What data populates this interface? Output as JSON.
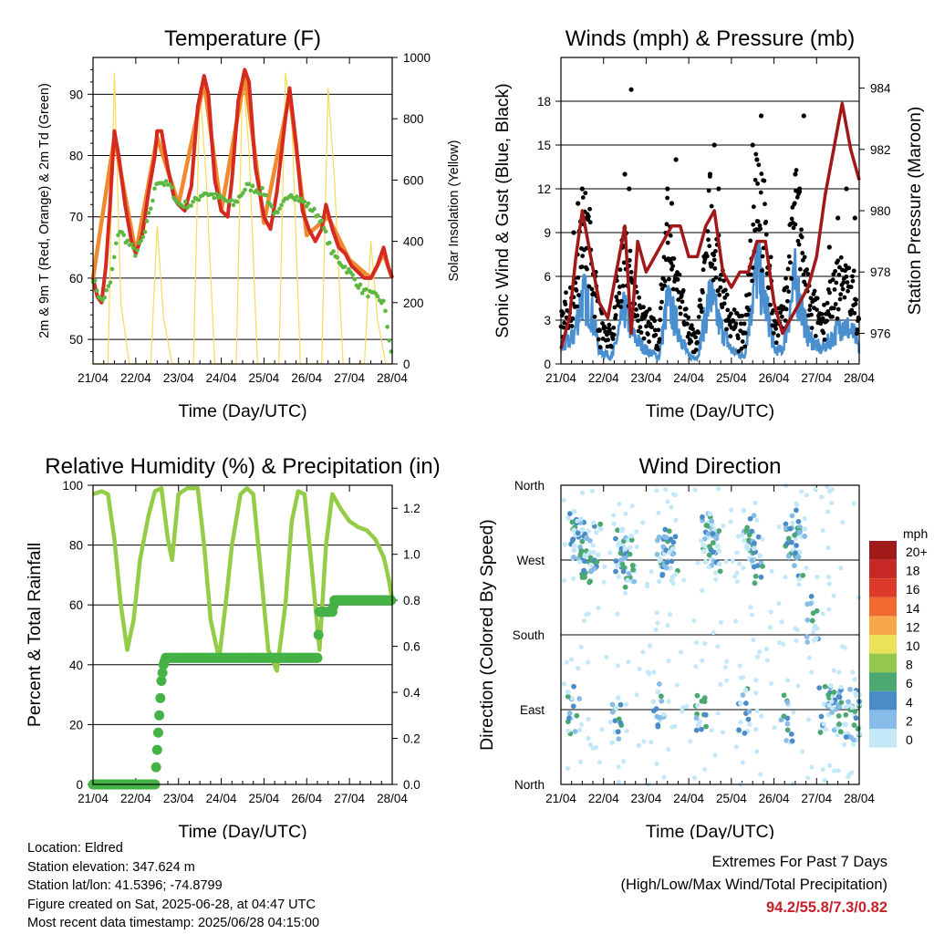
{
  "chart_data": [
    {
      "type": "line",
      "title": "Temperature (F)",
      "xlabel": "Time (Day/UTC)",
      "ylabel": "2m & 9m T (Red, Orange) & 2m Td (Green)",
      "ylabel_right": "Solar Insolation (Yellow)",
      "x_ticks": [
        "21/04",
        "22/04",
        "23/04",
        "24/04",
        "25/04",
        "26/04",
        "27/04",
        "28/04"
      ],
      "y_ticks": [
        50,
        60,
        70,
        80,
        90
      ],
      "y_right_ticks": [
        0,
        200,
        400,
        600,
        800,
        1000
      ],
      "ylim": [
        46,
        96
      ],
      "ylim_right": [
        0,
        1000
      ],
      "grid": true,
      "colors": {
        "temp_2m": "#d42a20",
        "temp_9m": "#f08a30",
        "dewpoint": "#5cb840",
        "solar": "#f5dc5a"
      },
      "series": [
        {
          "name": "2m T",
          "x": [
            0,
            0.1,
            0.2,
            0.3,
            0.4,
            0.5,
            0.6,
            0.75,
            0.9,
            1.0,
            1.15,
            1.3,
            1.45,
            1.5,
            1.6,
            1.75,
            1.9,
            2.0,
            2.15,
            2.3,
            2.45,
            2.6,
            2.7,
            2.85,
            3.0,
            3.15,
            3.25,
            3.4,
            3.55,
            3.65,
            3.8,
            4.0,
            4.15,
            4.3,
            4.5,
            4.6,
            4.75,
            4.9,
            5.05,
            5.2,
            5.35,
            5.45,
            5.6,
            5.75,
            5.9,
            6.05,
            6.2,
            6.35,
            6.5,
            6.65,
            6.8,
            6.9,
            7.0
          ],
          "y": [
            60,
            57,
            56,
            62,
            72,
            84,
            80,
            72,
            66,
            64,
            67,
            74,
            80,
            84,
            84,
            78,
            73,
            72,
            71,
            75,
            88,
            93,
            90,
            76,
            71,
            70,
            76,
            89,
            94,
            92,
            78,
            70,
            68,
            74,
            86,
            91,
            82,
            71,
            68,
            66,
            68,
            72,
            68,
            65,
            64,
            62,
            61,
            60,
            60,
            62,
            65,
            62,
            60
          ]
        },
        {
          "name": "9m T",
          "x": [
            0,
            0.5,
            1.0,
            1.5,
            2.0,
            2.6,
            3.0,
            3.55,
            4.0,
            4.6,
            5.0,
            5.5,
            6.0,
            6.5,
            6.8,
            7.0
          ],
          "y": [
            60,
            83,
            64,
            83,
            72,
            92,
            71,
            93,
            69,
            90,
            67,
            70,
            63,
            60,
            64,
            60
          ]
        },
        {
          "name": "2m Td",
          "x": [
            0,
            0.2,
            0.4,
            0.6,
            0.8,
            1.0,
            1.2,
            1.5,
            1.8,
            2.0,
            2.3,
            2.6,
            3.0,
            3.3,
            3.6,
            4.0,
            4.3,
            4.6,
            5.0,
            5.3,
            5.6,
            6.0,
            6.3,
            6.6,
            6.8,
            7.0
          ],
          "y": [
            60,
            56,
            59,
            68,
            66,
            64,
            67,
            76,
            75,
            72,
            72,
            74,
            73,
            72,
            75,
            74,
            70,
            74,
            72,
            70,
            64,
            61,
            58,
            57,
            56,
            47
          ]
        },
        {
          "name": "Solar",
          "x": [
            0,
            0.35,
            0.5,
            0.65,
            0.85,
            1.35,
            1.5,
            1.65,
            1.85,
            2.35,
            2.5,
            2.65,
            2.85,
            3.35,
            3.5,
            3.65,
            3.85,
            4.35,
            4.5,
            4.65,
            4.85,
            5.35,
            5.5,
            5.65,
            5.85,
            6.35,
            6.5,
            6.65,
            6.85,
            7.0
          ],
          "y": [
            0,
            0,
            950,
            200,
            0,
            0,
            450,
            150,
            0,
            0,
            900,
            600,
            0,
            0,
            950,
            700,
            0,
            0,
            950,
            800,
            0,
            0,
            900,
            600,
            0,
            0,
            400,
            150,
            0,
            0
          ]
        }
      ]
    },
    {
      "type": "scatter",
      "title": "Winds (mph) & Pressure (mb)",
      "xlabel": "Time (Day/UTC)",
      "ylabel": "Sonic Wind & Gust (Blue, Black)",
      "ylabel_right": "Station Pressure (Maroon)",
      "x_ticks": [
        "21/04",
        "22/04",
        "23/04",
        "24/04",
        "25/04",
        "26/04",
        "27/04",
        "28/04"
      ],
      "y_ticks": [
        0,
        3,
        6,
        9,
        12,
        15,
        18
      ],
      "y_right_ticks": [
        976,
        978,
        980,
        982,
        984
      ],
      "ylim": [
        0,
        21
      ],
      "ylim_right": [
        975,
        985
      ],
      "grid": true,
      "colors": {
        "wind": "#4a90d0",
        "gust": "#000000",
        "pressure": "#a01818"
      },
      "series": [
        {
          "name": "Wind",
          "x": [
            0,
            0.3,
            0.5,
            0.7,
            0.9,
            1.2,
            1.5,
            1.7,
            2.0,
            2.3,
            2.5,
            2.7,
            3.0,
            3.2,
            3.5,
            3.7,
            4.0,
            4.3,
            4.6,
            4.9,
            5.0,
            5.2,
            5.5,
            5.8,
            6.1,
            6.4,
            6.6,
            6.9,
            7.0
          ],
          "y": [
            1,
            2,
            5,
            4,
            1,
            0.5,
            4,
            2,
            1,
            0.5,
            4.5,
            3,
            0.5,
            0.5,
            5,
            3,
            1,
            0.5,
            7,
            3,
            1,
            1,
            6,
            2,
            1,
            2,
            3,
            2,
            1
          ]
        },
        {
          "name": "Gust",
          "x": [
            0.3,
            0.4,
            0.5,
            0.6,
            1.3,
            1.5,
            1.6,
            1.65,
            2.5,
            2.6,
            2.7,
            3.5,
            3.6,
            3.7,
            4.5,
            4.6,
            4.7,
            5.5,
            5.6,
            5.7,
            6.3,
            6.5,
            6.7,
            6.9
          ],
          "y": [
            9,
            11,
            12,
            10,
            6,
            13,
            12,
            18.8,
            12,
            11,
            14,
            13,
            15,
            12,
            15,
            14,
            17,
            13,
            12,
            17,
            8,
            10,
            12,
            10
          ]
        },
        {
          "name": "Pressure",
          "x": [
            0,
            0.2,
            0.35,
            0.5,
            0.7,
            0.9,
            1.1,
            1.3,
            1.5,
            1.65,
            1.8,
            2.0,
            2.2,
            2.4,
            2.6,
            2.8,
            3.0,
            3.2,
            3.4,
            3.6,
            3.8,
            4.0,
            4.2,
            4.4,
            4.6,
            4.8,
            5.0,
            5.2,
            5.4,
            5.6,
            5.8,
            6.0,
            6.2,
            6.4,
            6.6,
            6.8,
            7.0
          ],
          "y": [
            975.5,
            976.5,
            978.5,
            980,
            978.5,
            977,
            976.5,
            978,
            979.5,
            976,
            979,
            978,
            978.5,
            979,
            979.5,
            979.5,
            978.5,
            978.5,
            979.5,
            980,
            978,
            977.5,
            978,
            978,
            979,
            979,
            977,
            976,
            976.5,
            977,
            977.5,
            978.5,
            980.5,
            982,
            983.5,
            982,
            981
          ]
        }
      ]
    },
    {
      "type": "line",
      "title": "Relative Humidity (%) & Precipitation (in)",
      "xlabel": "Time (Day/UTC)",
      "ylabel": "Percent & Total Rainfall",
      "x_ticks": [
        "21/04",
        "22/04",
        "23/04",
        "24/04",
        "25/04",
        "26/04",
        "27/04",
        "28/04"
      ],
      "y_ticks": [
        0,
        20,
        40,
        60,
        80,
        100
      ],
      "y_right_ticks": [
        0.0,
        0.2,
        0.4,
        0.6,
        0.8,
        1.0,
        1.2
      ],
      "ylim": [
        0,
        100
      ],
      "ylim_right": [
        0,
        1.3
      ],
      "grid": true,
      "colors": {
        "humidity": "#94cc48",
        "precip": "#44b244"
      },
      "series": [
        {
          "name": "Relative Humidity",
          "x": [
            0,
            0.2,
            0.35,
            0.5,
            0.65,
            0.8,
            0.95,
            1.1,
            1.3,
            1.45,
            1.6,
            1.75,
            1.85,
            2.0,
            2.2,
            2.45,
            2.6,
            2.75,
            2.95,
            3.1,
            3.25,
            3.45,
            3.6,
            3.75,
            3.9,
            4.1,
            4.3,
            4.5,
            4.65,
            4.8,
            4.95,
            5.1,
            5.3,
            5.45,
            5.6,
            5.8,
            6.0,
            6.2,
            6.4,
            6.6,
            6.8,
            6.9,
            7.0
          ],
          "y": [
            97,
            98,
            97,
            82,
            60,
            45,
            55,
            75,
            90,
            98,
            99,
            82,
            75,
            97,
            99,
            99,
            80,
            55,
            42,
            60,
            80,
            97,
            99,
            97,
            75,
            45,
            38,
            60,
            88,
            98,
            97,
            75,
            45,
            80,
            97,
            92,
            88,
            86,
            85,
            82,
            76,
            70,
            62
          ]
        },
        {
          "name": "Total Precipitation",
          "x": [
            0,
            1.45,
            1.5,
            1.55,
            1.6,
            1.65,
            1.7,
            1.75,
            5.25,
            5.3,
            5.6,
            5.65,
            7.0
          ],
          "y": [
            0,
            0,
            0.15,
            0.3,
            0.45,
            0.52,
            0.55,
            0.55,
            0.55,
            0.75,
            0.75,
            0.8,
            0.8
          ]
        }
      ]
    },
    {
      "type": "scatter",
      "title": "Wind Direction",
      "xlabel": "Time (Day/UTC)",
      "ylabel": "Direction (Colored By Speed)",
      "x_ticks": [
        "21/04",
        "22/04",
        "23/04",
        "24/04",
        "25/04",
        "26/04",
        "27/04",
        "28/04"
      ],
      "y_ticks": [
        "North",
        "West",
        "South",
        "East",
        "North"
      ],
      "grid": true,
      "legend": {
        "title": "mph",
        "labels": [
          "20+",
          "18",
          "16",
          "14",
          "12",
          "10",
          "8",
          "6",
          "4",
          "2",
          "0"
        ],
        "colors": [
          "#a01a1a",
          "#c62828",
          "#dd3a2a",
          "#f0692e",
          "#f7a64a",
          "#ece25a",
          "#96c850",
          "#4aa870",
          "#4a8cc8",
          "#88bce8",
          "#c4e8f8"
        ]
      },
      "series": [
        {
          "name": "Direction",
          "x": [
            0.3,
            0.4,
            0.5,
            0.6,
            0.8,
            1.4,
            1.5,
            1.6,
            2.4,
            2.5,
            2.6,
            3.4,
            3.5,
            3.6,
            4.4,
            4.5,
            4.6,
            5.4,
            5.5,
            5.6,
            5.9,
            6.2,
            6.4,
            6.6,
            6.8,
            7.0,
            0.3,
            1.3,
            2.3,
            3.3,
            4.3,
            5.3
          ],
          "y": [
            300,
            290,
            280,
            270,
            285,
            285,
            270,
            265,
            290,
            280,
            275,
            300,
            290,
            280,
            300,
            285,
            270,
            300,
            290,
            280,
            200,
            90,
            95,
            90,
            85,
            80,
            90,
            80,
            95,
            85,
            90,
            80
          ]
        }
      ]
    }
  ],
  "info": {
    "location": "Location: Eldred",
    "elevation": "Station elevation: 347.624 m",
    "latlon": "Station lat/lon: 41.5396; -74.8799",
    "created": "Figure created on Sat, 2025-06-28, at 04:47 UTC",
    "recent": "Most recent data timestamp: 2025/06/28 04:15:00"
  },
  "extremes": {
    "heading": "Extremes For Past 7 Days",
    "subheading": "(High/Low/Max Wind/Total Precipitation)",
    "values": "94.2/55.8/7.3/0.82"
  }
}
